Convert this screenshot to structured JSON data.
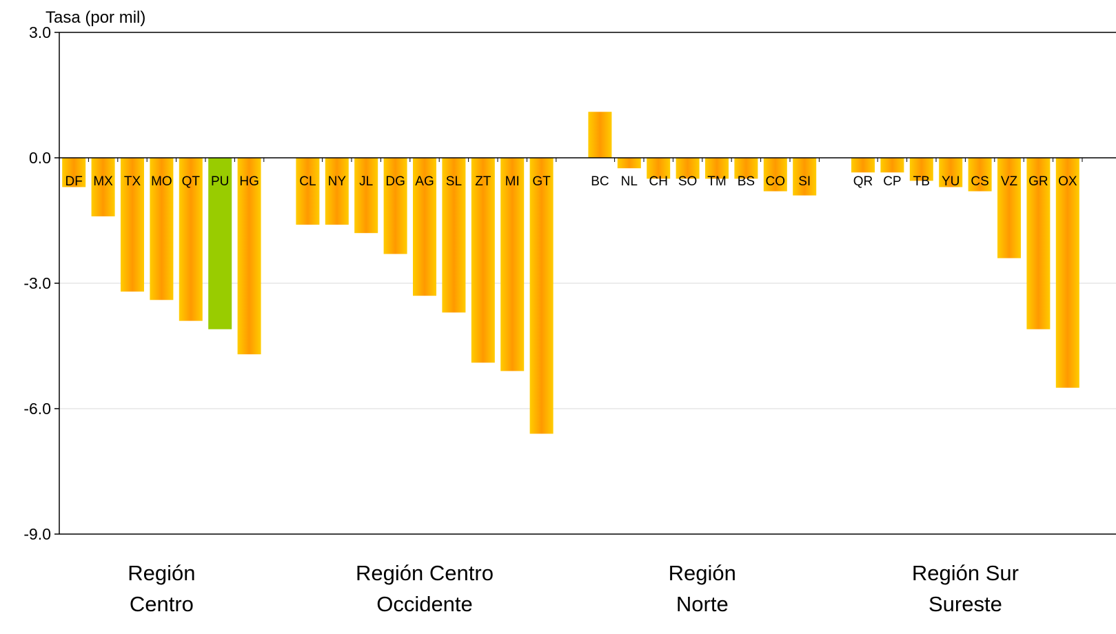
{
  "chart_data": {
    "type": "bar",
    "ylabel": "Tasa (por mil)",
    "ylim": [
      -9.0,
      3.0
    ],
    "yticks": [
      "3.0",
      "0.0",
      "-3.0",
      "-6.0",
      "-9.0"
    ],
    "grid": true,
    "colors": {
      "bar": "#FFA500",
      "bar_highlight": "#99CC00",
      "gridline": "#D9D9D9"
    },
    "groups": [
      {
        "name": [
          "Región",
          "Centro"
        ],
        "categories": [
          "DF",
          "MX",
          "TX",
          "MO",
          "QT",
          "PU",
          "HG"
        ],
        "values": [
          -0.7,
          -1.4,
          -3.2,
          -3.4,
          -3.9,
          -4.1,
          -4.7
        ]
      },
      {
        "name": [
          "Región Centro",
          "Occidente"
        ],
        "categories": [
          "CL",
          "NY",
          "JL",
          "DG",
          "AG",
          "SL",
          "ZT",
          "MI",
          "GT"
        ],
        "values": [
          -1.6,
          -1.6,
          -1.8,
          -2.3,
          -3.3,
          -3.7,
          -4.9,
          -5.1,
          -6.6
        ]
      },
      {
        "name": [
          "Región",
          "Norte"
        ],
        "categories": [
          "BC",
          "NL",
          "CH",
          "SO",
          "TM",
          "BS",
          "CO",
          "SI"
        ],
        "values": [
          1.1,
          -0.25,
          -0.5,
          -0.5,
          -0.5,
          -0.5,
          -0.8,
          -0.9
        ]
      },
      {
        "name": [
          "Región Sur",
          "Sureste"
        ],
        "categories": [
          "QR",
          "CP",
          "TB",
          "YU",
          "CS",
          "VZ",
          "GR",
          "OX"
        ],
        "values": [
          -0.35,
          -0.35,
          -0.55,
          -0.7,
          -0.8,
          -2.4,
          -4.1,
          -5.5
        ]
      }
    ],
    "highlight": "PU"
  }
}
